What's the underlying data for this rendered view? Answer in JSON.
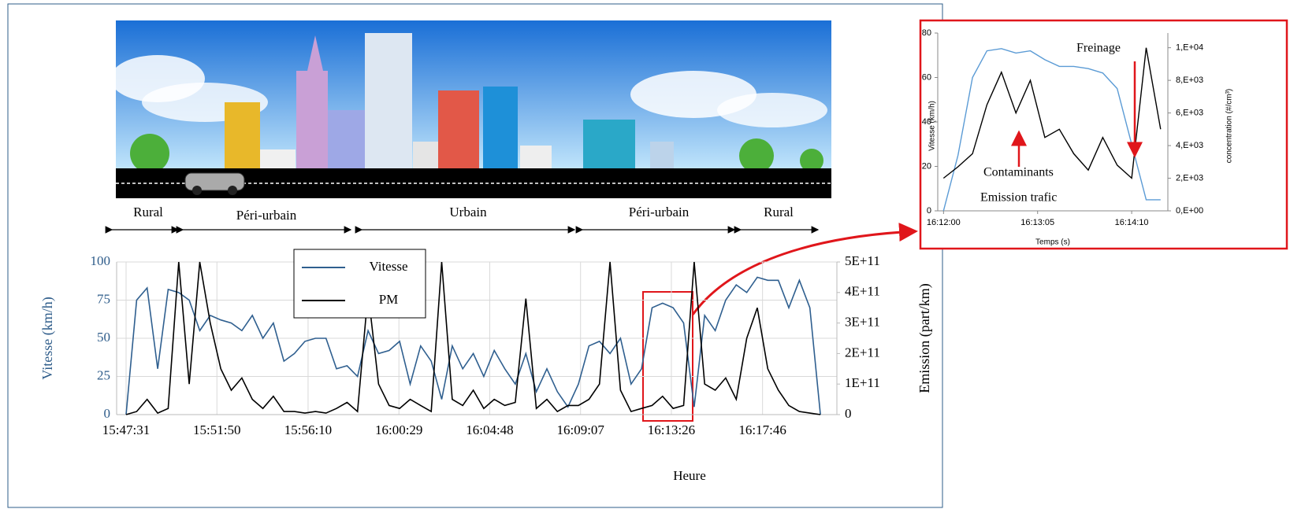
{
  "chart_data": [
    {
      "type": "line",
      "x": [
        "15:47:31",
        "15:48:01",
        "15:48:31",
        "15:49:01",
        "15:49:31",
        "15:50:01",
        "15:50:31",
        "15:51:01",
        "15:51:31",
        "15:52:01",
        "15:52:31",
        "15:53:01",
        "15:53:31",
        "15:54:01",
        "15:54:31",
        "15:55:01",
        "15:55:31",
        "15:56:01",
        "15:56:31",
        "15:57:01",
        "15:57:31",
        "15:58:01",
        "15:58:31",
        "15:59:01",
        "15:59:31",
        "16:00:01",
        "16:00:31",
        "16:01:01",
        "16:01:31",
        "16:02:01",
        "16:02:31",
        "16:03:01",
        "16:03:31",
        "16:04:01",
        "16:04:31",
        "16:05:01",
        "16:05:31",
        "16:06:01",
        "16:06:31",
        "16:07:01",
        "16:07:31",
        "16:08:01",
        "16:08:31",
        "16:09:01",
        "16:09:31",
        "16:10:01",
        "16:10:31",
        "16:11:01",
        "16:11:31",
        "16:12:01",
        "16:12:31",
        "16:13:01",
        "16:13:31",
        "16:14:01",
        "16:14:31",
        "16:15:01",
        "16:15:31",
        "16:16:01",
        "16:16:31",
        "16:17:01",
        "16:17:31",
        "16:18:01",
        "16:18:31",
        "16:19:01",
        "16:19:31",
        "16:20:01",
        "16:20:31"
      ],
      "series": [
        {
          "name": "Vitesse",
          "color": "#2f5f8f",
          "values": [
            0,
            75,
            83,
            30,
            82,
            80,
            75,
            55,
            65,
            62,
            60,
            55,
            65,
            50,
            60,
            35,
            40,
            48,
            50,
            50,
            30,
            32,
            25,
            55,
            40,
            42,
            48,
            20,
            45,
            35,
            10,
            45,
            30,
            40,
            25,
            42,
            30,
            20,
            40,
            15,
            30,
            15,
            5,
            20,
            45,
            48,
            40,
            50,
            20,
            30,
            70,
            73,
            70,
            60,
            5,
            65,
            55,
            75,
            85,
            80,
            90,
            88,
            88,
            70,
            88,
            70,
            0
          ]
        },
        {
          "name": "PM",
          "color": "#000000",
          "axis": "y2",
          "values": [
            0,
            10000000000.0,
            50000000000.0,
            5000000000.0,
            20000000000.0,
            500000000000.0,
            100000000000.0,
            500000000000.0,
            300000000000.0,
            150000000000.0,
            80000000000.0,
            120000000000.0,
            50000000000.0,
            20000000000.0,
            60000000000.0,
            10000000000.0,
            10000000000.0,
            5000000000.0,
            10000000000.0,
            5000000000.0,
            20000000000.0,
            40000000000.0,
            10000000000.0,
            400000000000.0,
            100000000000.0,
            30000000000.0,
            20000000000.0,
            50000000000.0,
            30000000000.0,
            10000000000.0,
            500000000000.0,
            50000000000.0,
            30000000000.0,
            80000000000.0,
            20000000000.0,
            50000000000.0,
            30000000000.0,
            40000000000.0,
            380000000000.0,
            20000000000.0,
            50000000000.0,
            10000000000.0,
            30000000000.0,
            30000000000.0,
            50000000000.0,
            100000000000.0,
            500000000000.0,
            80000000000.0,
            10000000000.0,
            20000000000.0,
            30000000000.0,
            60000000000.0,
            20000000000.0,
            30000000000.0,
            500000000000.0,
            100000000000.0,
            80000000000.0,
            120000000000.0,
            50000000000.0,
            250000000000.0,
            350000000000.0,
            150000000000.0,
            80000000000.0,
            30000000000.0,
            10000000000.0,
            5000000000.0,
            0
          ]
        }
      ],
      "xlim": [
        "15:47:04",
        "16:21:18"
      ],
      "xticks": [
        "15:47:31",
        "15:51:50",
        "15:56:10",
        "16:00:29",
        "16:04:48",
        "16:09:07",
        "16:13:26",
        "16:17:46"
      ],
      "ylim": [
        0,
        100
      ],
      "yticks": [
        0,
        25,
        50,
        75,
        100
      ],
      "y2lim": [
        0,
        500000000000.0
      ],
      "y2ticks": [
        0,
        {
          "value": 100000000000.0,
          "label": "1E+11"
        },
        {
          "value": 200000000000.0,
          "label": "2E+11"
        },
        {
          "value": 300000000000.0,
          "label": "3E+11"
        },
        {
          "value": 400000000000.0,
          "label": "4E+11"
        },
        {
          "value": 500000000000.0,
          "label": "5E+11"
        }
      ],
      "x_label": "Heure",
      "y_label": "Vitesse (km/h)",
      "y2_label": "Emission (part/km)",
      "grid": true,
      "legend": true,
      "annotations": [
        "Rural",
        "Péri-urbain",
        "Urbain",
        "Péri-urbain",
        "Rural"
      ]
    },
    {
      "type": "line",
      "x": [
        "16:12:00",
        "16:12:10",
        "16:12:20",
        "16:12:30",
        "16:12:40",
        "16:12:50",
        "16:13:00",
        "16:13:10",
        "16:13:20",
        "16:13:30",
        "16:13:40",
        "16:13:50",
        "16:14:00",
        "16:14:10",
        "16:14:20",
        "16:14:30"
      ],
      "series": [
        {
          "name": "Vitesse",
          "color": "#5b9bd5",
          "values": [
            0,
            25,
            60,
            72,
            73,
            71,
            72,
            68,
            65,
            65,
            64,
            62,
            55,
            30,
            5,
            5
          ]
        },
        {
          "name": "concentration",
          "color": "#000000",
          "axis": "y2",
          "values": [
            2000,
            2700,
            3500,
            6500,
            8500,
            6000,
            8000,
            4500,
            5000,
            3500,
            2500,
            4500,
            2800,
            2000,
            10000,
            5000
          ]
        }
      ],
      "xlim": [
        "16:11:56",
        "16:14:35"
      ],
      "xticks": [
        "16:12:00",
        "16:13:05",
        "16:14:10"
      ],
      "ylim": [
        0,
        80
      ],
      "yticks": [
        0,
        20,
        40,
        60,
        80
      ],
      "y2lim": [
        0,
        10900
      ],
      "y2ticks": [
        {
          "value": 0,
          "label": "0,E+00"
        },
        {
          "value": 2000,
          "label": "2,E+03"
        },
        {
          "value": 4000,
          "label": "4,E+03"
        },
        {
          "value": 6000,
          "label": "6,E+03"
        },
        {
          "value": 8000,
          "label": "8,E+03"
        },
        {
          "value": 10000,
          "label": "1,E+04"
        }
      ],
      "x_label": "Temps (s)",
      "y_label": "Vitesse (km/h)",
      "y2_label": "concentration  (#/cm³)",
      "grid": false,
      "legend": false,
      "annotations": [
        "Freinage",
        "Contaminants",
        "Emission trafic"
      ]
    }
  ]
}
